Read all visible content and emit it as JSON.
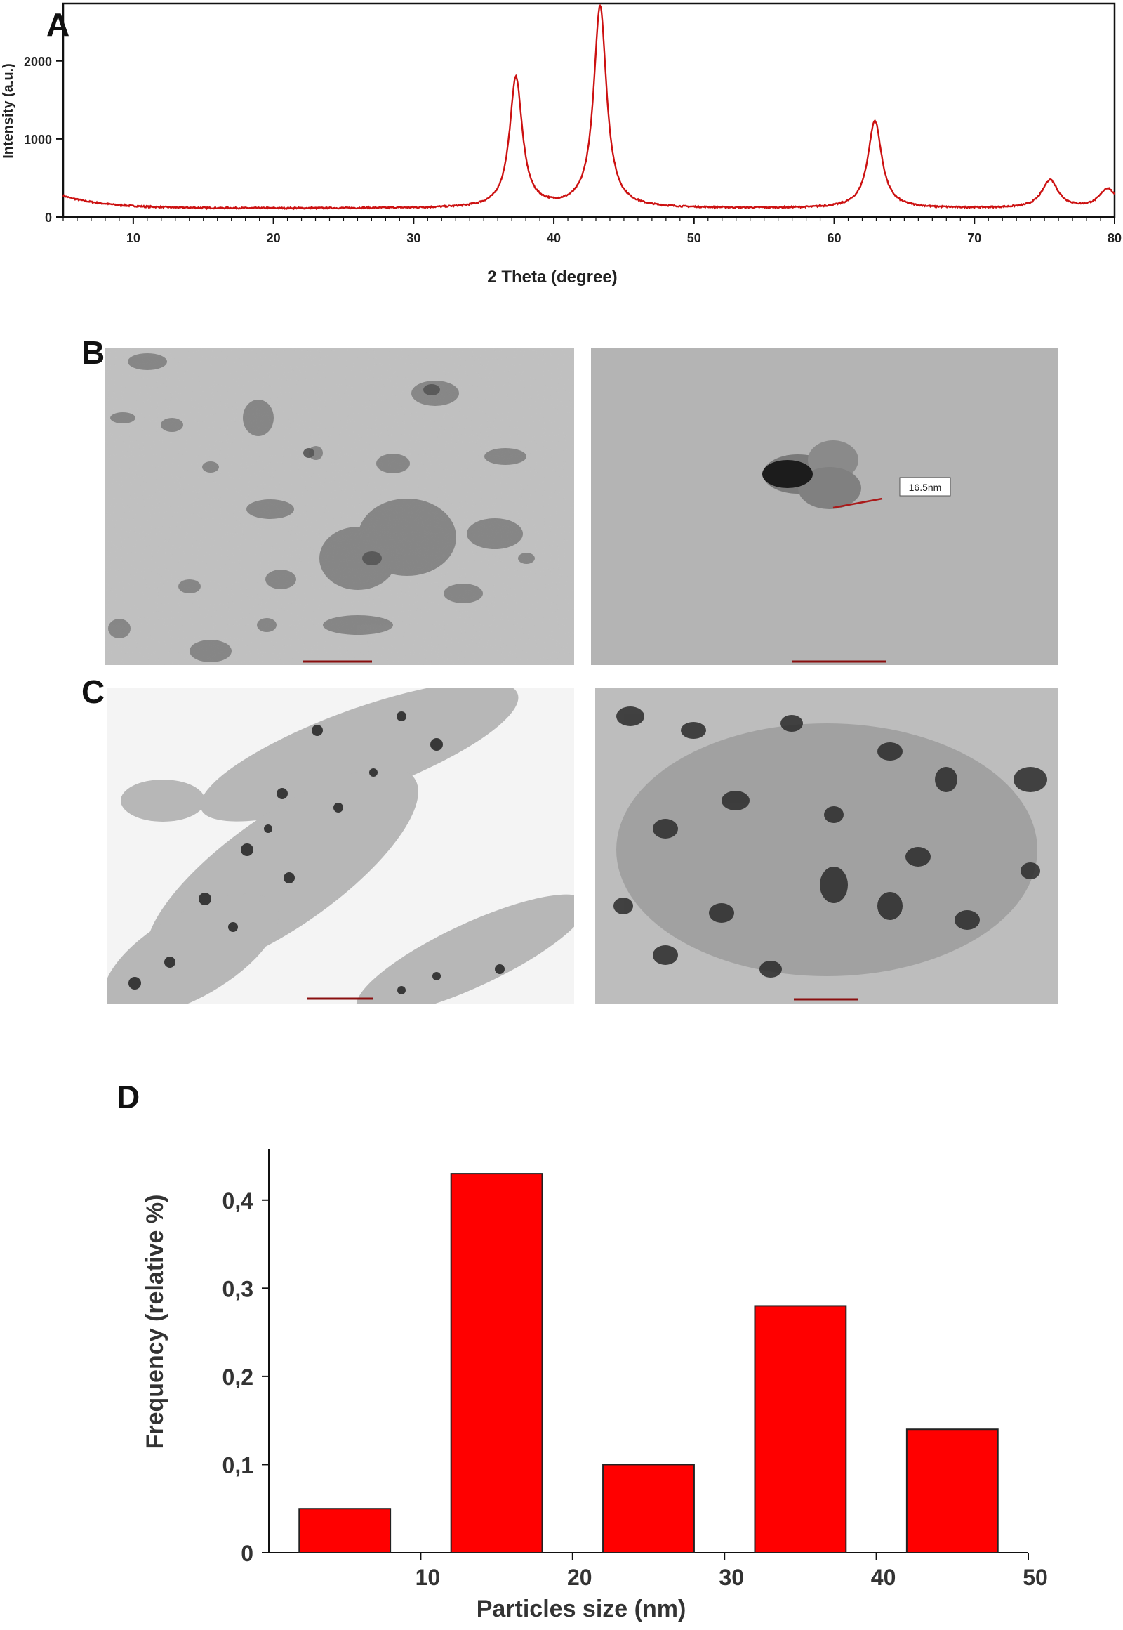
{
  "panel_labels": {
    "a": "A",
    "b": "B",
    "c": "C",
    "d": "D"
  },
  "colors": {
    "xrd_line": "#cc1111",
    "bar_fill": "#ff0000",
    "bar_stroke": "#222222",
    "axis": "#111111"
  },
  "micrographs": {
    "b_right_measure": "16.5nm",
    "descriptions_hidden": false
  },
  "chart_data": [
    {
      "type": "line",
      "panel": "A",
      "xlabel": "2 Theta (degree)",
      "ylabel": "Intensity (a.u.)",
      "xlim": [
        5,
        80
      ],
      "ylim": [
        0,
        2700
      ],
      "x_ticks": [
        10,
        20,
        30,
        40,
        50,
        60,
        70,
        80
      ],
      "y_ticks": [
        0,
        1000,
        2000
      ],
      "baseline": 110,
      "peaks": [
        {
          "two_theta": 37.3,
          "intensity": 1780
        },
        {
          "two_theta": 43.3,
          "intensity": 2700
        },
        {
          "two_theta": 62.9,
          "intensity": 1230
        },
        {
          "two_theta": 75.4,
          "intensity": 470
        },
        {
          "two_theta": 79.5,
          "intensity": 360
        }
      ],
      "grid": false
    },
    {
      "type": "bar",
      "panel": "D",
      "xlabel": "Particles size (nm)",
      "ylabel": "Frequency (relative %)",
      "xlim": [
        0,
        50
      ],
      "ylim": [
        0,
        0.45
      ],
      "x_ticks": [
        "10",
        "20",
        "30",
        "40",
        "50"
      ],
      "x_tick_values": [
        10,
        20,
        30,
        40,
        50
      ],
      "y_ticks": [
        "0",
        "0,1",
        "0,2",
        "0,3",
        "0,4"
      ],
      "y_tick_values": [
        0,
        0.1,
        0.2,
        0.3,
        0.4
      ],
      "bins": [
        {
          "x0": 2,
          "x1": 8,
          "value": 0.05
        },
        {
          "x0": 12,
          "x1": 18,
          "value": 0.43
        },
        {
          "x0": 22,
          "x1": 28,
          "value": 0.1
        },
        {
          "x0": 32,
          "x1": 38,
          "value": 0.28
        },
        {
          "x0": 42,
          "x1": 48,
          "value": 0.14
        }
      ],
      "grid": false
    }
  ]
}
